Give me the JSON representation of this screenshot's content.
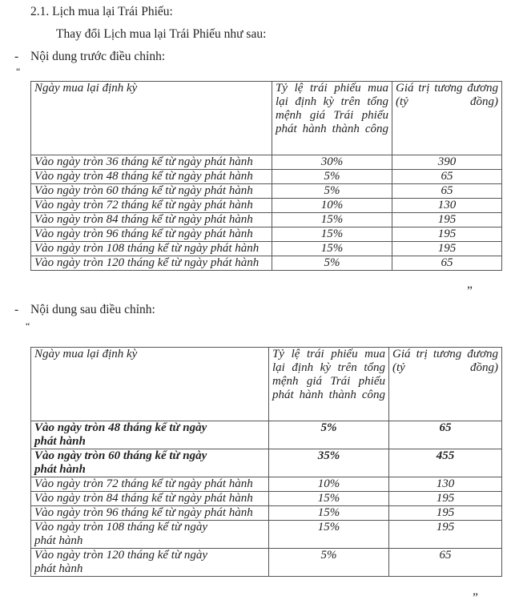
{
  "section_title": "2.1. Lịch mua lại Trái Phiếu:",
  "intro": "Thay đổi Lịch mua lại Trái Phiếu như sau:",
  "before": {
    "label": "Nội dung trước điều chỉnh:",
    "open_quote": "“",
    "close_quote": "”",
    "headers": [
      "Ngày mua lại định kỳ",
      "Tỷ lệ trái phiếu mua lại định kỳ trên tổng mệnh giá Trái phiếu phát hành thành công",
      "Giá trị tương đương (tỷ đồng)"
    ],
    "rows": [
      {
        "date": "Vào ngày tròn 36 tháng kể từ ngày phát hành",
        "ratio": "30%",
        "value": "390"
      },
      {
        "date": "Vào ngày tròn 48 tháng kể từ ngày phát hành",
        "ratio": "5%",
        "value": "65"
      },
      {
        "date": "Vào ngày tròn 60 tháng kể từ ngày phát hành",
        "ratio": "5%",
        "value": "65"
      },
      {
        "date": "Vào ngày tròn 72 tháng kể từ ngày phát hành",
        "ratio": "10%",
        "value": "130"
      },
      {
        "date": "Vào ngày tròn 84 tháng kể từ ngày phát hành",
        "ratio": "15%",
        "value": "195"
      },
      {
        "date": "Vào ngày tròn 96 tháng kể từ ngày phát hành",
        "ratio": "15%",
        "value": "195"
      },
      {
        "date": "Vào ngày tròn 108 tháng kể từ ngày phát hành",
        "ratio": "15%",
        "value": "195"
      },
      {
        "date": "Vào ngày tròn 120 tháng kể từ ngày phát hành",
        "ratio": "5%",
        "value": "65"
      }
    ]
  },
  "after": {
    "label": "Nội dung sau điều chỉnh:",
    "open_quote": "“",
    "close_quote": "”",
    "headers": [
      "Ngày mua lại định kỳ",
      "Tỷ lệ trái phiếu mua lại định kỳ trên tổng mệnh giá Trái phiếu phát hành thành công",
      "Giá trị tương đương (tỷ đồng)"
    ],
    "rows": [
      {
        "date": "Vào ngày tròn 48 tháng kể từ ngày phát hành",
        "ratio": "5%",
        "value": "65",
        "bold": true
      },
      {
        "date": "Vào ngày tròn 60 tháng kể từ ngày phát hành",
        "ratio": "35%",
        "value": "455",
        "bold": true
      },
      {
        "date": "Vào ngày tròn 72 tháng kể từ ngày phát hành",
        "ratio": "10%",
        "value": "130"
      },
      {
        "date": "Vào ngày tròn 84 tháng kể từ ngày phát hành",
        "ratio": "15%",
        "value": "195"
      },
      {
        "date": "Vào ngày tròn 96 tháng kể từ ngày phát hành",
        "ratio": "15%",
        "value": "195"
      },
      {
        "date": "Vào ngày tròn 108 tháng kể từ ngày phát hành",
        "ratio": "15%",
        "value": "195"
      },
      {
        "date": "Vào ngày tròn 120 tháng kể từ ngày phát hành",
        "ratio": "5%",
        "value": "65"
      }
    ]
  }
}
